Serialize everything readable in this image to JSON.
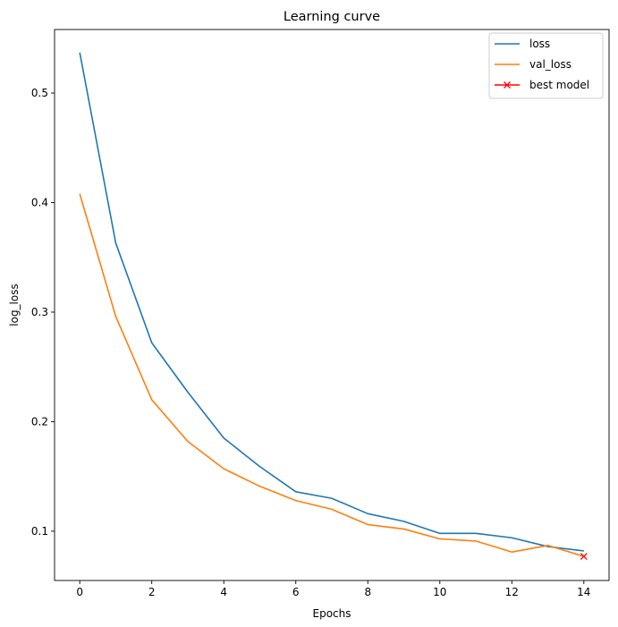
{
  "chart_data": {
    "type": "line",
    "title": "Learning curve",
    "xlabel": "Epochs",
    "ylabel": "log_loss",
    "xlim": [
      -0.7,
      14.7
    ],
    "ylim": [
      0.055,
      0.558
    ],
    "xticks": [
      0,
      2,
      4,
      6,
      8,
      10,
      12,
      14
    ],
    "yticks": [
      0.1,
      0.2,
      0.3,
      0.4,
      0.5
    ],
    "ytick_labels": [
      "0.1",
      "0.2",
      "0.3",
      "0.4",
      "0.5"
    ],
    "grid": false,
    "legend_position": "top-right",
    "x": [
      0,
      1,
      2,
      3,
      4,
      5,
      6,
      7,
      8,
      9,
      10,
      11,
      12,
      13,
      14
    ],
    "series": [
      {
        "name": "loss",
        "color": "#1f77b4",
        "values": [
          0.537,
          0.363,
          0.272,
          0.227,
          0.185,
          0.159,
          0.136,
          0.13,
          0.116,
          0.109,
          0.098,
          0.098,
          0.094,
          0.086,
          0.082
        ]
      },
      {
        "name": "val_loss",
        "color": "#ff7f0e",
        "values": [
          0.408,
          0.296,
          0.22,
          0.182,
          0.157,
          0.141,
          0.128,
          0.12,
          0.106,
          0.102,
          0.093,
          0.091,
          0.081,
          0.087,
          0.077
        ]
      }
    ],
    "markers": [
      {
        "name": "best model",
        "color": "#ff0000",
        "marker": "x",
        "x": 14,
        "y": 0.077
      }
    ]
  }
}
